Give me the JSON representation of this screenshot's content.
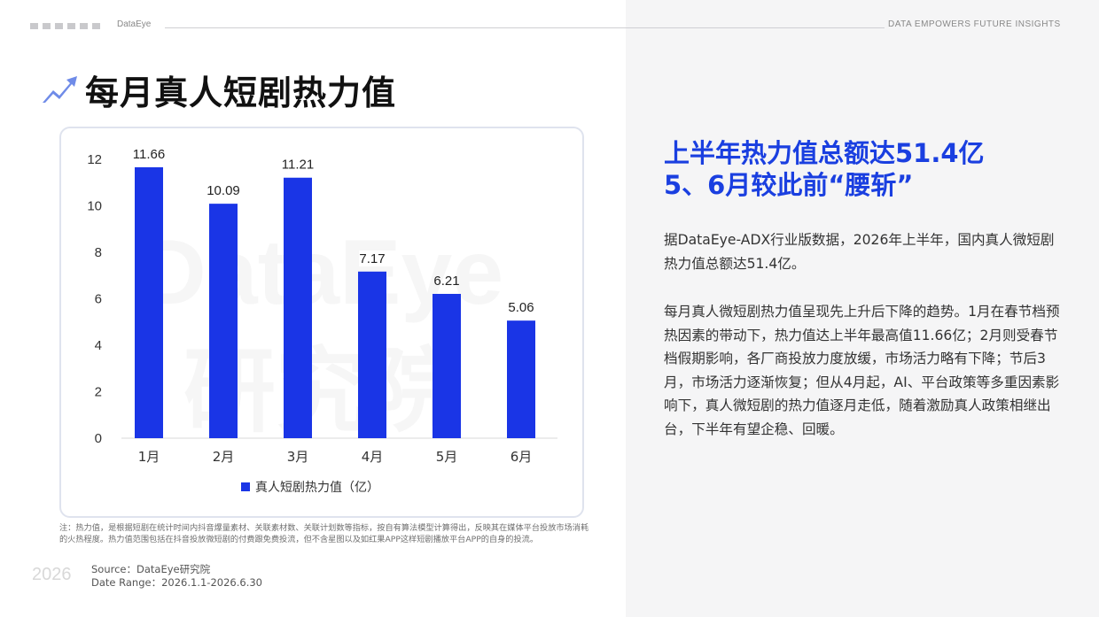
{
  "header": {
    "brand": "DataEye",
    "tagline": "DATA  EMPOWERS  FUTURE  INSIGHTS"
  },
  "page_title": "每月真人短剧热力值",
  "watermark": {
    "line1": "DataEye",
    "line2": "研究院"
  },
  "chart_data": {
    "type": "bar",
    "categories": [
      "1月",
      "2月",
      "3月",
      "4月",
      "5月",
      "6月"
    ],
    "series": [
      {
        "name": "真人短剧热力值（亿）",
        "values": [
          11.66,
          10.09,
          11.21,
          7.17,
          6.21,
          5.06
        ],
        "color": "#1a35e6"
      }
    ],
    "data_labels": [
      "11.66",
      "10.09",
      "11.21",
      "7.17",
      "6.21",
      "5.06"
    ],
    "y_ticks": [
      "0",
      "2",
      "4",
      "6",
      "8",
      "10",
      "12"
    ],
    "ylim": [
      0,
      12
    ],
    "grid": false,
    "legend": "bottom-center"
  },
  "note": "注：热力值，是根据短剧在统计时间内抖音爆量素材、关联素材数、关联计划数等指标，按自有算法模型计算得出，反映其在媒体平台投放市场消耗的火热程度。热力值范围包括在抖音投放微短剧的付费跟免费投流，但不含星图以及如红果APP这样短剧播放平台APP的自身的投流。",
  "footer": {
    "year": "2026",
    "source": "Source：DataEye研究院",
    "date_range": "Date Range：2026.1.1-2026.6.30"
  },
  "right": {
    "headline_line1": "上半年热力值总额达51.4亿",
    "headline_line2": "5、6月较此前“腰斩”",
    "paragraph1": "据DataEye-ADX行业版数据，2026年上半年，国内真人微短剧热力值总额达51.4亿。",
    "paragraph2": "每月真人微短剧热力值呈现先上升后下降的趋势。1月在春节档预热因素的带动下，热力值达上半年最高值11.66亿；2月则受春节档假期影响，各厂商投放力度放缓，市场活力略有下降；节后3月，市场活力逐渐恢复；但从4月起，AI、平台政策等多重因素影响下，真人微短剧的热力值逐月走低，随着激励真人政策相继出台，下半年有望企稳、回暖。"
  },
  "colors": {
    "accent": "#1a3fe0",
    "bar": "#1a35e6"
  }
}
